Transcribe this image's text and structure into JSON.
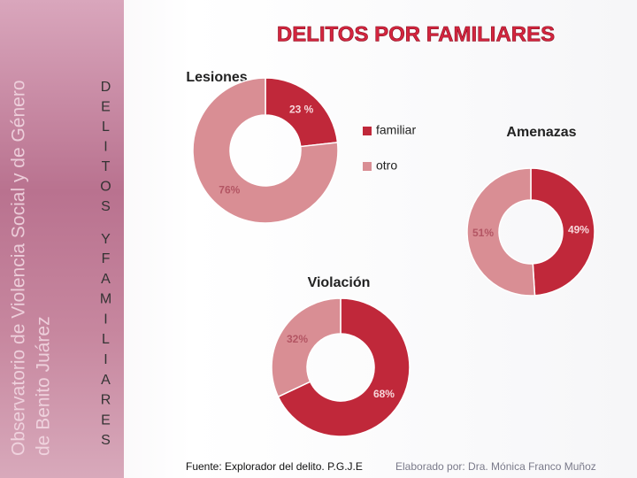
{
  "title": "DELITOS POR FAMILIARES",
  "sidebar": {
    "lines": [
      "DELITOS",
      "Y",
      "FAMILIARES"
    ],
    "watermark": [
      "Observatorio de Violencia Social y de Género",
      "de Benito Juárez"
    ]
  },
  "footer": {
    "source": "Fuente: Explorador del delito. P.G.J.E",
    "author": "Elaborado por: Dra. Mónica Franco Muñoz"
  },
  "chart_data": [
    {
      "type": "donut",
      "title": "Lesiones",
      "categories": [
        "familiar",
        "otro"
      ],
      "values": [
        23,
        76
      ],
      "value_labels": [
        "23 %",
        "76%"
      ],
      "colors": [
        "#c0283a",
        "#d98e94"
      ]
    },
    {
      "type": "donut",
      "title": "Amenazas",
      "categories": [
        "familiar",
        "otro"
      ],
      "values": [
        49,
        51
      ],
      "value_labels": [
        "49%",
        "51%"
      ],
      "colors": [
        "#c0283a",
        "#d98e94"
      ]
    },
    {
      "type": "donut",
      "title": "Violación",
      "categories": [
        "familiar",
        "otro"
      ],
      "values": [
        68,
        32
      ],
      "value_labels": [
        "68%",
        "32%"
      ],
      "colors": [
        "#c0283a",
        "#d98e94"
      ]
    }
  ]
}
